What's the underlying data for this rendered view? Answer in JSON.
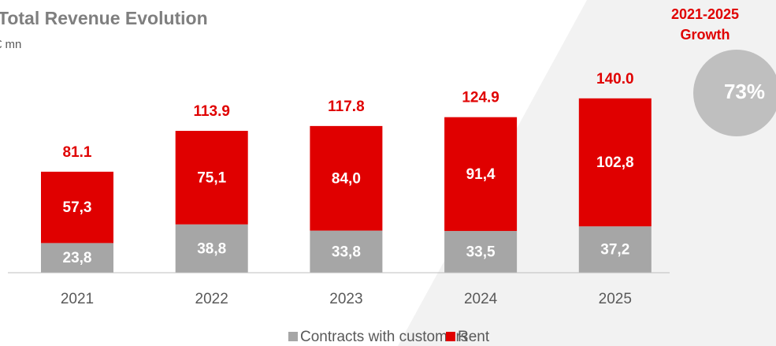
{
  "chart_data": {
    "type": "stacked_bar",
    "title": "Total Revenue Evolution",
    "subtitle": "€ mn",
    "categories": [
      "2021",
      "2022",
      "2023",
      "2024",
      "2025"
    ],
    "series": [
      {
        "name": "Contracts with customers",
        "color": "#a6a6a6",
        "values": [
          23.8,
          38.8,
          33.8,
          33.5,
          37.2
        ],
        "value_labels": [
          "23,8",
          "38,8",
          "33,8",
          "33,5",
          "37,2"
        ]
      },
      {
        "name": "Rent",
        "color": "#e00000",
        "values": [
          57.3,
          75.1,
          84.0,
          91.4,
          102.8
        ],
        "value_labels": [
          "57,3",
          "75,1",
          "84,0",
          "91,4",
          "102,8"
        ]
      }
    ],
    "totals": {
      "values": [
        81.1,
        113.9,
        117.8,
        124.9,
        140.0
      ],
      "value_labels": [
        "81.1",
        "113.9",
        "117.8",
        "124.9",
        "140.0"
      ],
      "color": "#e00000"
    },
    "growth": {
      "title": [
        "2021-2025",
        "Growth"
      ],
      "value": 73,
      "value_label": "73%"
    },
    "legend": "bottom"
  }
}
